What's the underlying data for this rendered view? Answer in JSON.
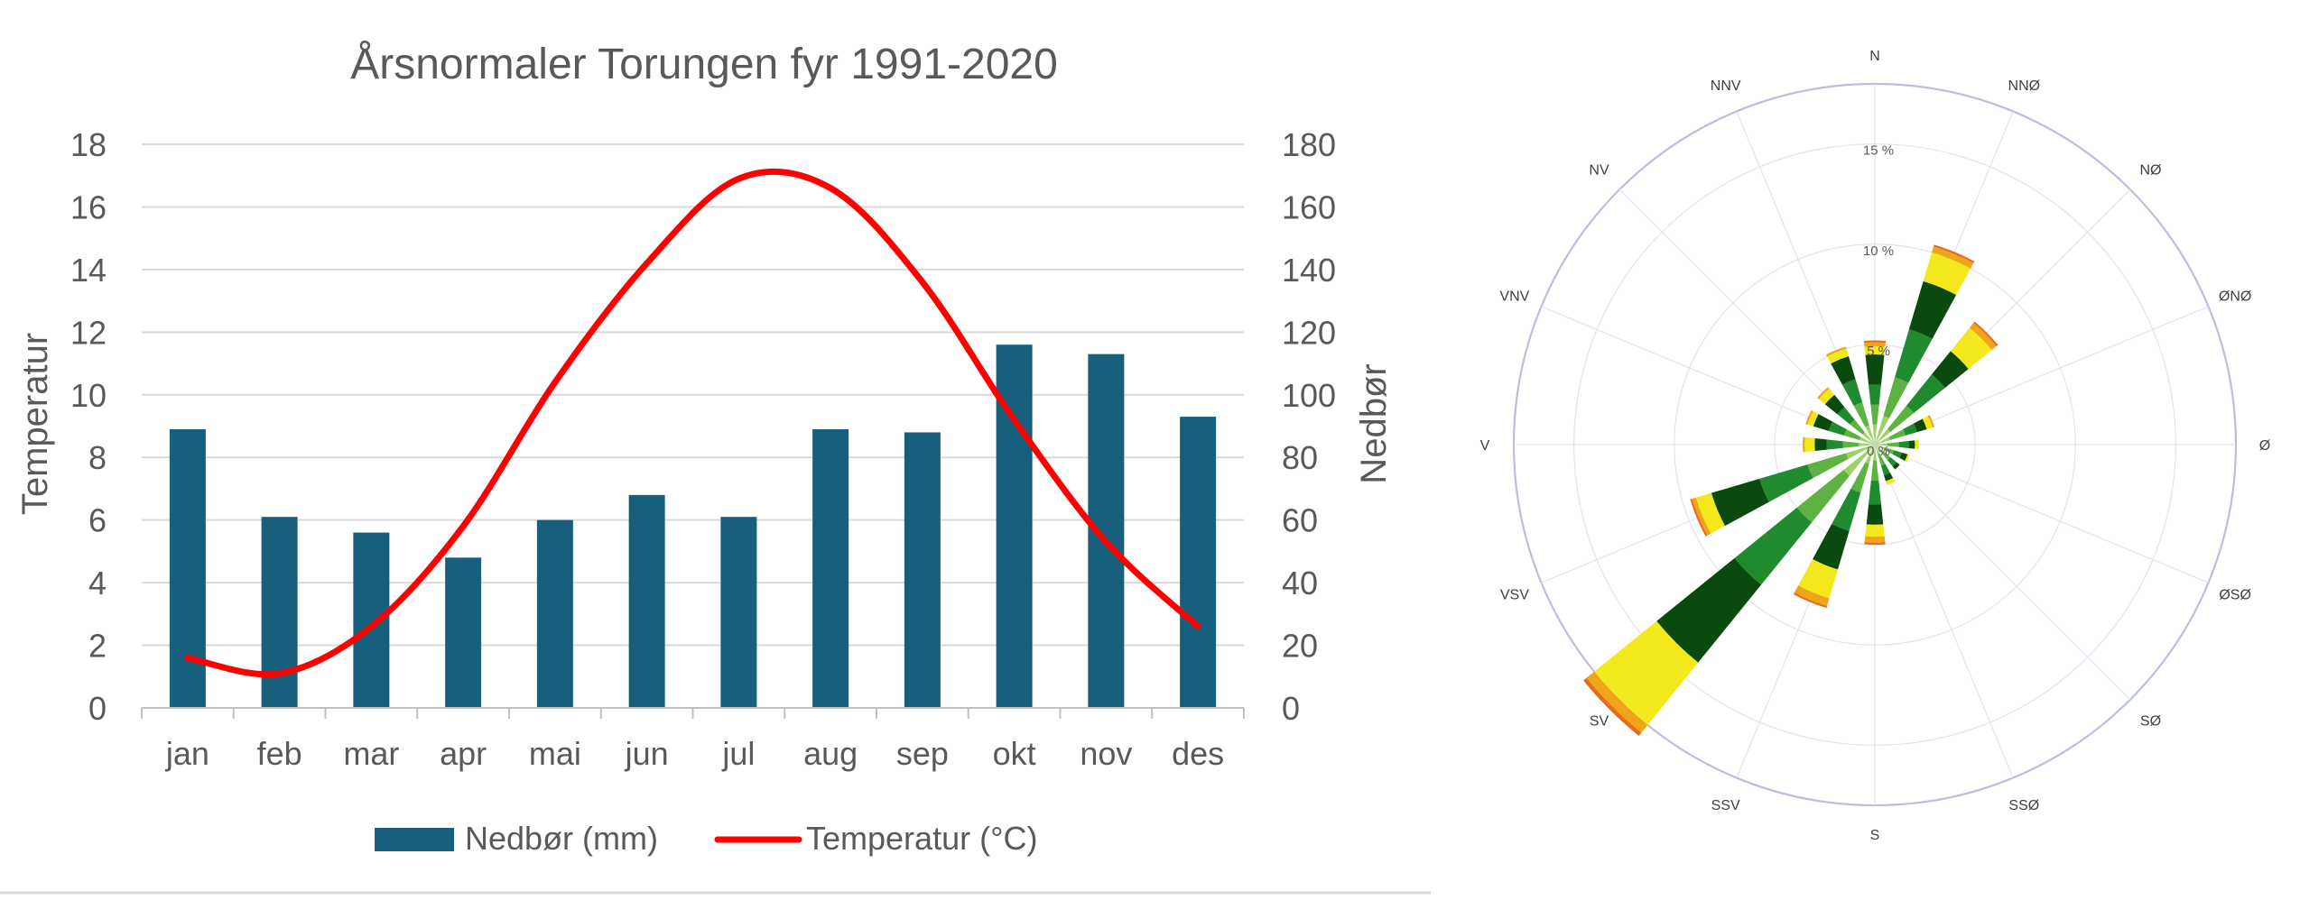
{
  "chart_data": [
    {
      "type": "bar",
      "title": "Årsnormaler Torungen fyr 1991-2020",
      "categories": [
        "jan",
        "feb",
        "mar",
        "apr",
        "mai",
        "jun",
        "jul",
        "aug",
        "sep",
        "okt",
        "nov",
        "des"
      ],
      "series": [
        {
          "name": "Nedbør (mm)",
          "type": "bar",
          "axis": "right",
          "color": "#17607D",
          "values": [
            89,
            61,
            56,
            48,
            60,
            68,
            61,
            89,
            88,
            116,
            113,
            93
          ]
        },
        {
          "name": "Temperatur (°C)",
          "type": "line",
          "axis": "left",
          "color": "#FF0000",
          "values": [
            1.6,
            1.1,
            2.6,
            5.8,
            10.4,
            14.2,
            16.9,
            16.6,
            13.6,
            9.2,
            5.3,
            2.6
          ]
        }
      ],
      "ylabel": "Temperatur",
      "y2label": "Nedbør",
      "ylim": [
        0,
        18
      ],
      "y2lim": [
        0,
        180
      ],
      "yticks": [
        "0",
        "2",
        "4",
        "6",
        "8",
        "10",
        "12",
        "14",
        "16",
        "18"
      ],
      "y2ticks": [
        "0",
        "20",
        "40",
        "60",
        "80",
        "100",
        "120",
        "140",
        "160",
        "180"
      ],
      "grid": true,
      "legend": "bottom"
    },
    {
      "type": "polar-bar",
      "directions": [
        "N",
        "NNØ",
        "NØ",
        "ØNØ",
        "Ø",
        "ØSØ",
        "SØ",
        "SSØ",
        "S",
        "SSV",
        "SV",
        "VSV",
        "V",
        "VNV",
        "NV",
        "NNV"
      ],
      "ring_labels": [
        "0 %",
        "5 %",
        "10 %",
        "15 %"
      ],
      "rmax": 18,
      "band_colors": [
        "#9BD36A",
        "#5DB342",
        "#1F8A2E",
        "#0B4A0E",
        "#F2E81B",
        "#F0A419",
        "#E46C1A"
      ],
      "bands": [
        [
          1.0,
          1.0,
          1.0,
          1.5,
          0.4,
          0.2,
          0.1
        ],
        [
          1.5,
          2.0,
          2.5,
          2.5,
          1.5,
          0.3,
          0.1
        ],
        [
          1.0,
          1.5,
          2.0,
          1.5,
          1.5,
          0.3,
          0.1
        ],
        [
          0.8,
          0.8,
          0.6,
          0.5,
          0.3,
          0.1,
          0.0
        ],
        [
          0.6,
          0.6,
          0.5,
          0.3,
          0.2,
          0.0,
          0.0
        ],
        [
          0.5,
          0.5,
          0.4,
          0.3,
          0.1,
          0.0,
          0.0
        ],
        [
          0.5,
          0.5,
          0.4,
          0.2,
          0.0,
          0.0,
          0.0
        ],
        [
          0.5,
          0.6,
          0.5,
          0.3,
          0.2,
          0.0,
          0.0
        ],
        [
          0.8,
          1.0,
          1.2,
          1.0,
          0.6,
          0.3,
          0.1
        ],
        [
          1.0,
          1.5,
          2.0,
          2.0,
          1.5,
          0.4,
          0.1
        ],
        [
          2.0,
          3.0,
          4.0,
          5.0,
          4.0,
          0.5,
          0.2
        ],
        [
          1.5,
          2.0,
          2.5,
          2.5,
          0.8,
          0.2,
          0.1
        ],
        [
          0.8,
          0.8,
          0.8,
          0.6,
          0.5,
          0.1,
          0.0
        ],
        [
          0.8,
          0.8,
          0.8,
          0.8,
          0.3,
          0.1,
          0.0
        ],
        [
          0.8,
          0.8,
          0.8,
          0.8,
          0.4,
          0.1,
          0.0
        ],
        [
          1.0,
          1.2,
          1.2,
          1.2,
          0.4,
          0.1,
          0.0
        ]
      ]
    }
  ]
}
